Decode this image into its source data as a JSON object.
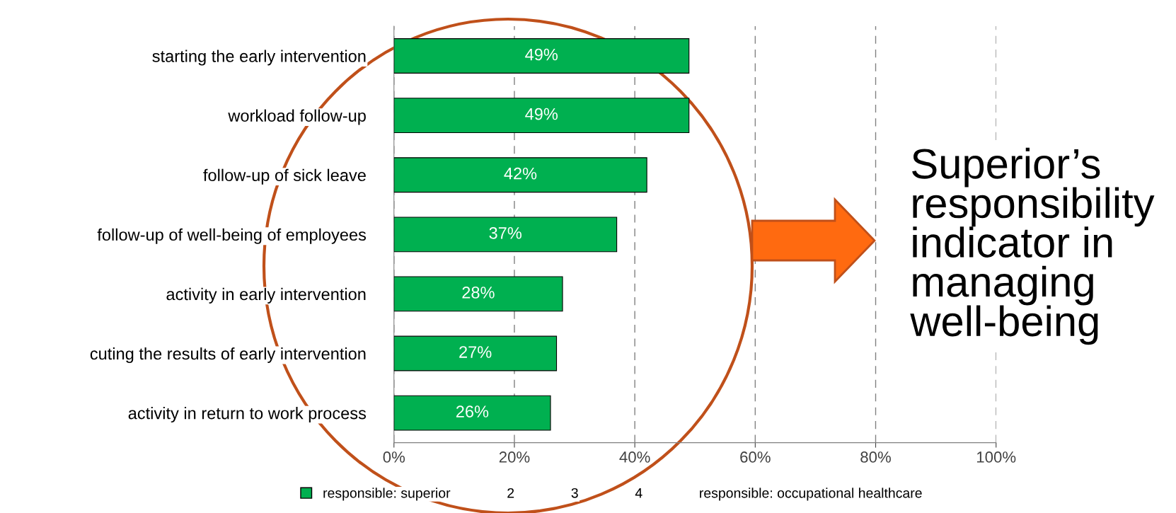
{
  "chart_data": {
    "type": "bar",
    "orientation": "horizontal",
    "categories": [
      "starting the early intervention",
      "workload follow-up",
      "follow-up of sick leave",
      "follow-up of well-being of employees",
      "activity in early intervention",
      "cuting the results of early intervention",
      "activity in return to work process"
    ],
    "series": [
      {
        "name": "responsible: superior",
        "color": "#00b050",
        "values": [
          49,
          49,
          42,
          37,
          28,
          27,
          26
        ]
      },
      {
        "name": "2",
        "values": [
          null,
          null,
          null,
          null,
          null,
          null,
          null
        ]
      },
      {
        "name": "3",
        "values": [
          null,
          null,
          null,
          null,
          null,
          null,
          null
        ]
      },
      {
        "name": "4",
        "values": [
          null,
          null,
          null,
          null,
          null,
          null,
          null
        ]
      },
      {
        "name": "responsible: occupational healthcare",
        "values": [
          null,
          null,
          null,
          null,
          null,
          null,
          null
        ]
      }
    ],
    "xlim": [
      0,
      100
    ],
    "xticks": [
      {
        "value": 0,
        "label": "0%"
      },
      {
        "value": 20,
        "label": "20%"
      },
      {
        "value": 40,
        "label": "40%"
      },
      {
        "value": 60,
        "label": "60%"
      },
      {
        "value": 80,
        "label": "80%"
      },
      {
        "value": 100,
        "label": "100%"
      }
    ],
    "value_labels": [
      "49%",
      "49%",
      "42%",
      "37%",
      "28%",
      "27%",
      "26%"
    ],
    "grid": "x",
    "legend": "bottom",
    "annotations": [
      "Superior’s\nresponsibility\nindicator in\nmanaging\nwell-being"
    ]
  }
}
